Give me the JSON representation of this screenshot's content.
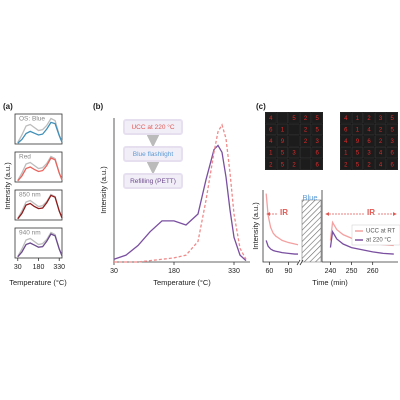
{
  "chart_data": [
    {
      "type": "line",
      "panel_label": "(a)",
      "label": "OS: Blue",
      "x": [
        30,
        60,
        90,
        120,
        150,
        180,
        210,
        240,
        270,
        300,
        330,
        350
      ],
      "xlim": [
        10,
        350
      ],
      "ylim": [
        0,
        1
      ],
      "series": [
        {
          "color": "#bdbdbd",
          "values": [
            0.05,
            0.3,
            0.6,
            0.65,
            0.55,
            0.45,
            0.48,
            0.62,
            0.85,
            0.78,
            0.3,
            0.08
          ]
        },
        {
          "color": "#3f8fb8",
          "values": [
            0.03,
            0.15,
            0.35,
            0.42,
            0.36,
            0.3,
            0.33,
            0.5,
            0.72,
            0.68,
            0.28,
            0.06
          ]
        }
      ]
    },
    {
      "type": "line",
      "label": "Red",
      "x": [
        30,
        60,
        90,
        120,
        150,
        180,
        210,
        240,
        270,
        300,
        330,
        350
      ],
      "xlim": [
        10,
        350
      ],
      "ylim": [
        0,
        1
      ],
      "series": [
        {
          "color": "#bdbdbd",
          "values": [
            0.05,
            0.3,
            0.6,
            0.65,
            0.55,
            0.45,
            0.48,
            0.62,
            0.85,
            0.78,
            0.3,
            0.08
          ]
        },
        {
          "color": "#e8635c",
          "values": [
            0.04,
            0.2,
            0.45,
            0.5,
            0.42,
            0.35,
            0.38,
            0.55,
            0.8,
            0.74,
            0.3,
            0.07
          ]
        }
      ]
    },
    {
      "type": "line",
      "label": "850 nm",
      "x": [
        30,
        60,
        90,
        120,
        150,
        180,
        210,
        240,
        270,
        300,
        330,
        350
      ],
      "xlim": [
        10,
        350
      ],
      "ylim": [
        0,
        1
      ],
      "series": [
        {
          "color": "#bdbdbd",
          "values": [
            0.05,
            0.3,
            0.6,
            0.65,
            0.55,
            0.45,
            0.48,
            0.62,
            0.85,
            0.78,
            0.3,
            0.08
          ]
        },
        {
          "color": "#8e1b1b",
          "values": [
            0.04,
            0.22,
            0.5,
            0.55,
            0.45,
            0.38,
            0.4,
            0.58,
            0.82,
            0.76,
            0.3,
            0.07
          ]
        }
      ]
    },
    {
      "type": "line",
      "label": "940 nm",
      "x": [
        30,
        60,
        90,
        120,
        150,
        180,
        210,
        240,
        270,
        300,
        330,
        350
      ],
      "xlim": [
        10,
        350
      ],
      "ylim": [
        0,
        1
      ],
      "xticks": [
        30,
        180,
        330
      ],
      "xlabel": "Temperature (°C)",
      "ylabel": "Intensity (a.u.)",
      "series": [
        {
          "color": "#bdbdbd",
          "values": [
            0.05,
            0.3,
            0.6,
            0.65,
            0.55,
            0.45,
            0.48,
            0.62,
            0.85,
            0.78,
            0.3,
            0.08
          ]
        },
        {
          "color": "#6b4a8c",
          "values": [
            0.04,
            0.2,
            0.45,
            0.5,
            0.43,
            0.36,
            0.38,
            0.56,
            0.8,
            0.74,
            0.3,
            0.07
          ]
        }
      ]
    },
    {
      "type": "line",
      "panel_label": "(b)",
      "x": [
        30,
        60,
        90,
        120,
        150,
        180,
        210,
        240,
        260,
        280,
        290,
        300,
        310,
        320,
        330,
        345,
        360
      ],
      "xlim": [
        30,
        370
      ],
      "ylim": [
        0,
        1.05
      ],
      "xticks": [
        30,
        180,
        330
      ],
      "xlabel": "Temperature (°C)",
      "ylabel": "Intensity (a.u.)",
      "steps": [
        "UCC at 220 °C",
        "Blue flashlight",
        "Refilling (PETT)"
      ],
      "step_colors": [
        "#e05a55",
        "#5b9bd5",
        "#6b4a8c"
      ],
      "series": [
        {
          "color": "#7a4fa0",
          "values": [
            0.02,
            0.05,
            0.12,
            0.22,
            0.3,
            0.3,
            0.27,
            0.35,
            0.6,
            0.82,
            0.85,
            0.8,
            0.62,
            0.38,
            0.18,
            0.05,
            0.01
          ]
        },
        {
          "color": "#f08a8a",
          "dash": true,
          "values": [
            0,
            0,
            0,
            0.01,
            0.02,
            0.03,
            0.05,
            0.15,
            0.45,
            0.8,
            0.95,
            1.0,
            0.9,
            0.65,
            0.35,
            0.1,
            0.02
          ]
        }
      ]
    },
    {
      "type": "image",
      "panel_label": "(c)",
      "color": "#e02a2a",
      "grids": [
        [
          "4",
          null,
          "5",
          "2",
          "5",
          "6",
          "1",
          null,
          "2",
          "5",
          "4",
          "9",
          null,
          "2",
          "3",
          "1",
          "5",
          "3",
          null,
          "6",
          "2",
          "5",
          "2",
          null,
          "6"
        ],
        [
          "4",
          "1",
          "2",
          "3",
          "5",
          "6",
          "1",
          "4",
          "2",
          "5",
          "4",
          "9",
          "6",
          "2",
          "3",
          "1",
          "5",
          "3",
          "4",
          "6",
          "2",
          "5",
          "2",
          "4",
          "6"
        ]
      ]
    },
    {
      "type": "line",
      "x": [
        55,
        58,
        62,
        66,
        70,
        75,
        80,
        90,
        100,
        105
      ],
      "xlim": [
        50,
        105
      ],
      "ylim": [
        0,
        1
      ],
      "xticks": [
        60,
        90
      ],
      "ylabel": "Intensity (a.u.)",
      "annotations": [
        "IR",
        "Blue"
      ],
      "annotation_colors": [
        "#e05a55",
        "#5b9bd5"
      ],
      "series": [
        {
          "color": "#f4a0a0",
          "values": [
            0.95,
            0.65,
            0.48,
            0.4,
            0.36,
            0.33,
            0.3,
            0.27,
            0.25,
            0.24
          ]
        },
        {
          "color": "#7a4fa0",
          "values": [
            0.3,
            0.22,
            0.18,
            0.16,
            0.15,
            0.14,
            0.13,
            0.12,
            0.11,
            0.11
          ]
        }
      ]
    },
    {
      "type": "line",
      "x": [
        240,
        241,
        243,
        246,
        250,
        255,
        260,
        265,
        270
      ],
      "xlim": [
        236,
        272
      ],
      "ylim": [
        0,
        1
      ],
      "xticks": [
        240,
        250,
        260
      ],
      "xlabel": "Time (min)",
      "annotations": [
        "IR"
      ],
      "annotation_colors": [
        "#e05a55"
      ],
      "series": [
        {
          "name": "UCC at RT",
          "color": "#f4a0a0",
          "values": [
            0.3,
            0.55,
            0.45,
            0.38,
            0.33,
            0.29,
            0.26,
            0.24,
            0.23
          ]
        },
        {
          "name": "at 220 °C",
          "color": "#7a4fa0",
          "values": [
            0.2,
            0.42,
            0.32,
            0.25,
            0.2,
            0.17,
            0.14,
            0.12,
            0.11
          ]
        }
      ]
    }
  ]
}
